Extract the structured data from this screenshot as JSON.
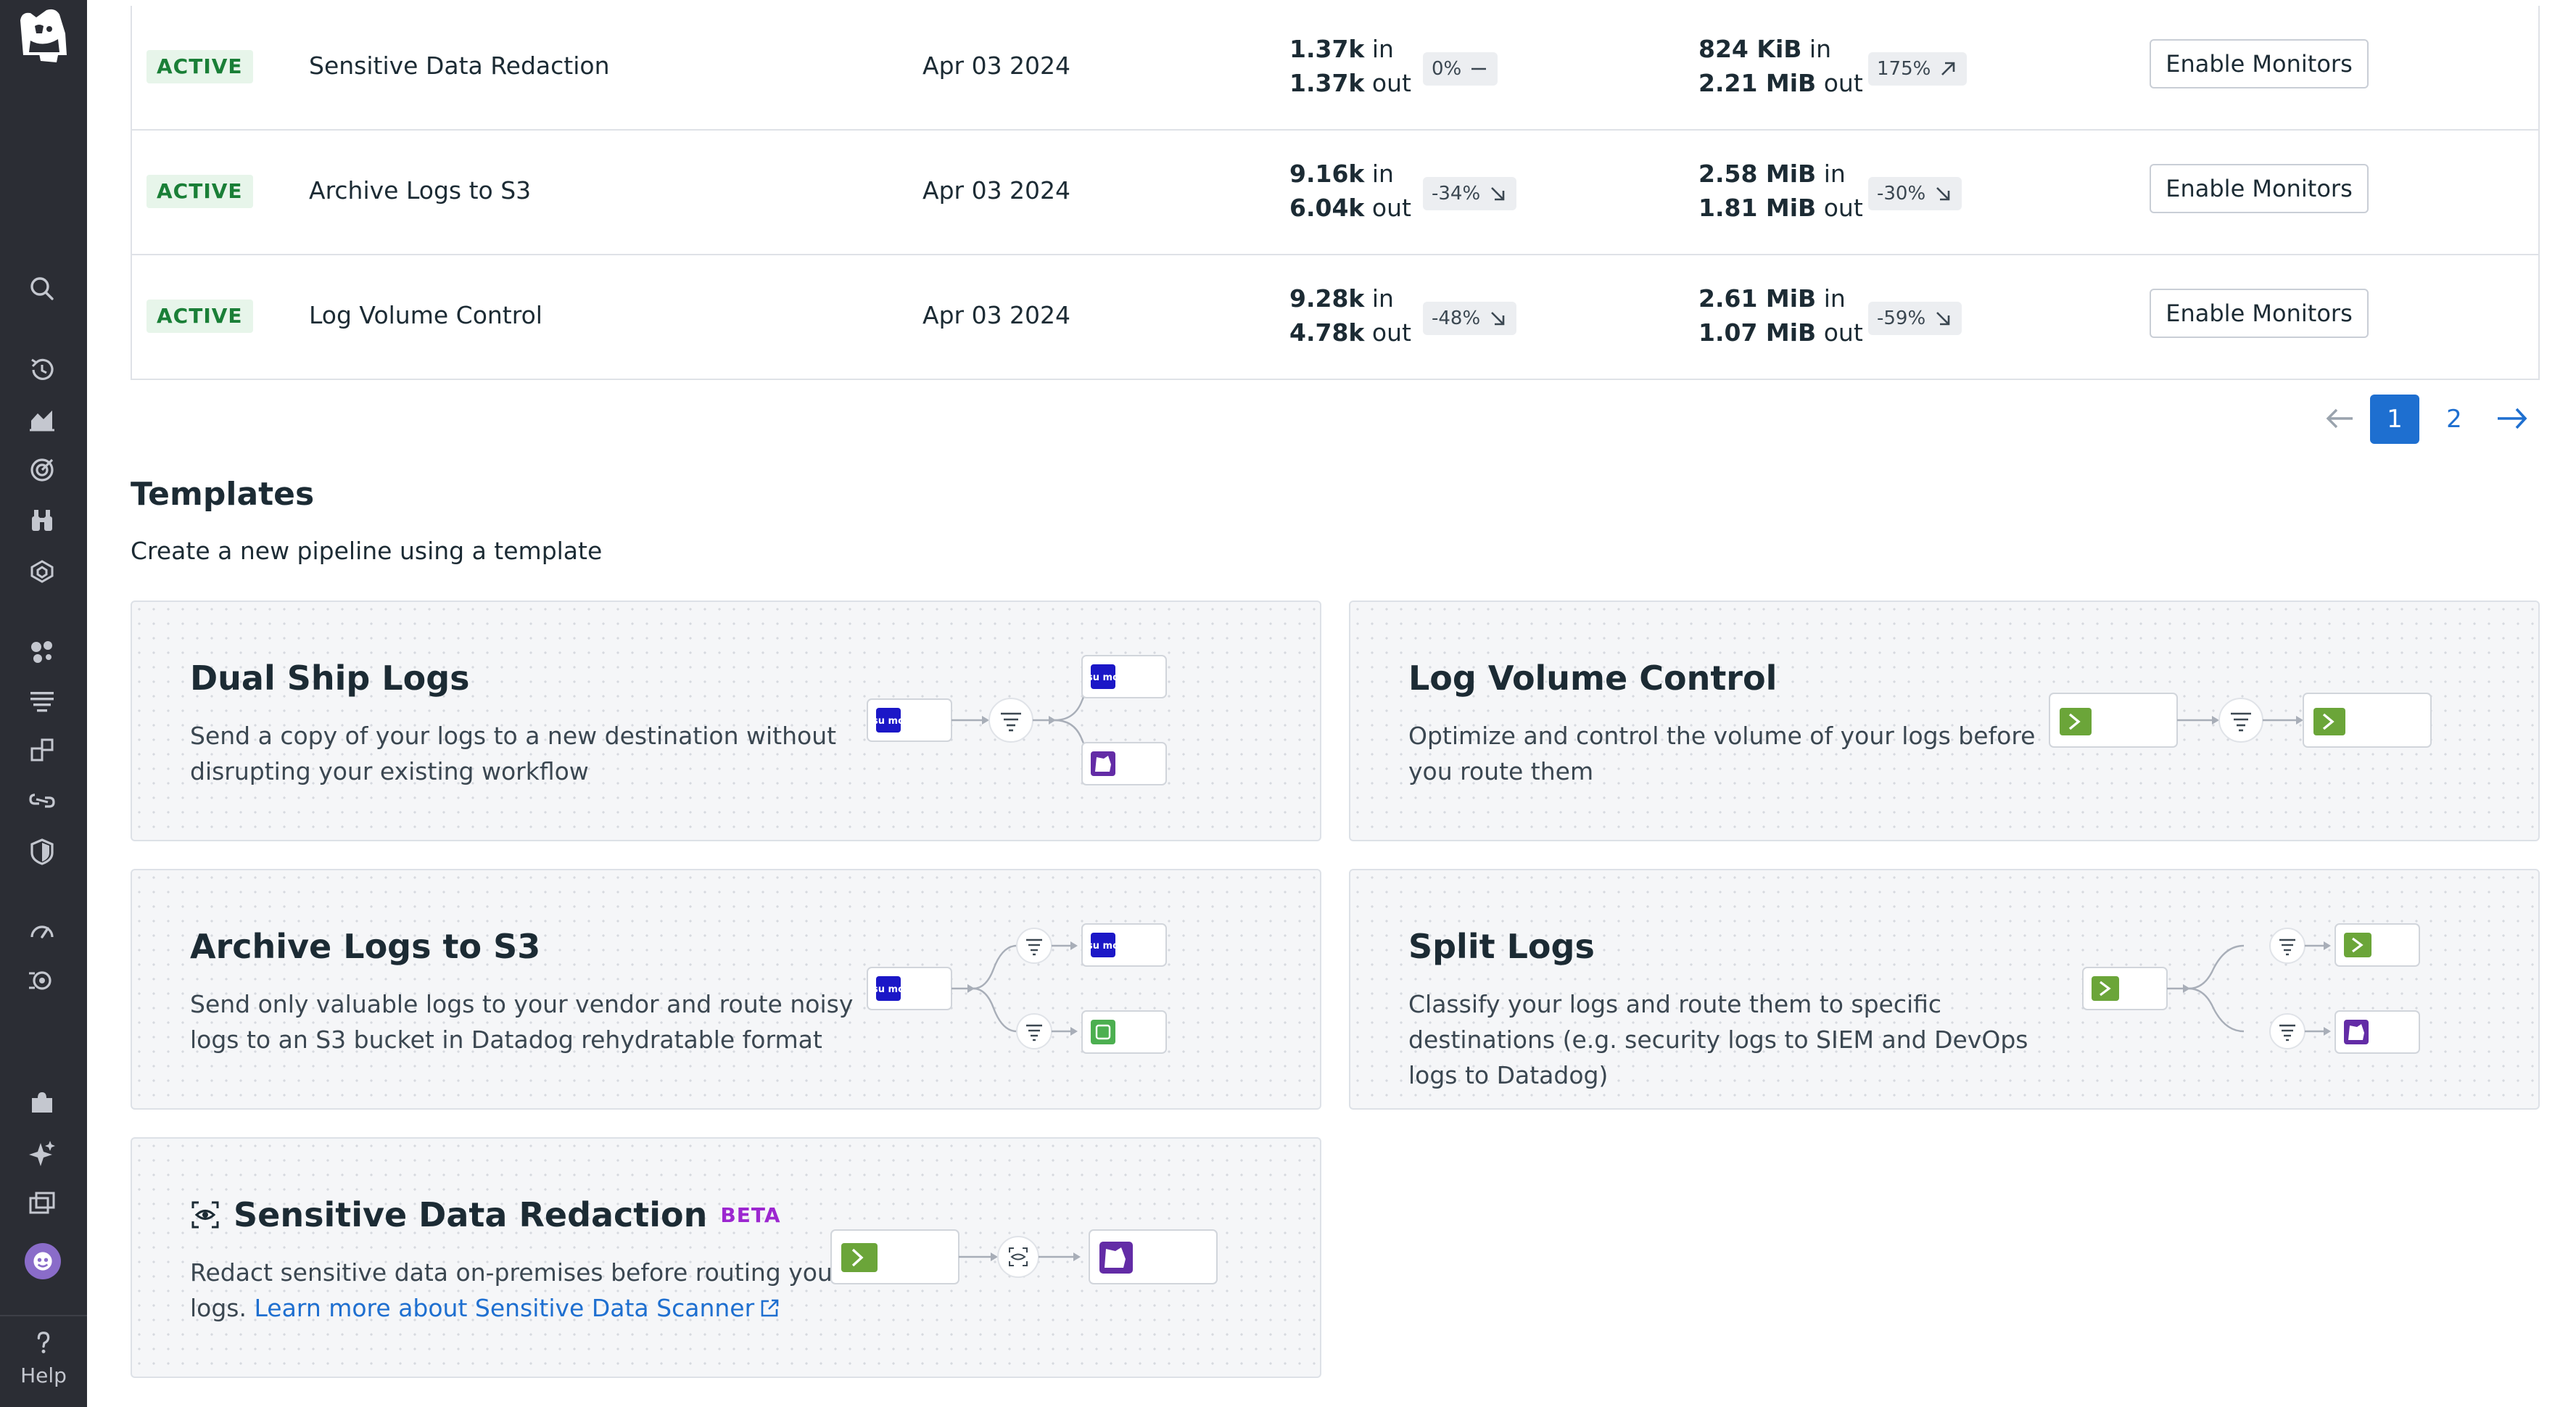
{
  "sidebar": {
    "items": [
      {
        "name": "search",
        "icon": "search-icon"
      },
      {
        "name": "history",
        "icon": "history-icon"
      },
      {
        "name": "dashboards",
        "icon": "area-chart-icon"
      },
      {
        "name": "monitors",
        "icon": "target-icon"
      },
      {
        "name": "watchdog",
        "icon": "binoculars-icon"
      },
      {
        "name": "service-mgmt",
        "icon": "layers-icon"
      },
      {
        "name": "infrastructure",
        "icon": "hexagons-icon"
      },
      {
        "name": "logs",
        "icon": "logs-icon"
      },
      {
        "name": "apm",
        "icon": "apm-icon"
      },
      {
        "name": "integrations-link",
        "icon": "chain-link-icon"
      },
      {
        "name": "security",
        "icon": "shield-icon"
      },
      {
        "name": "digital-experience",
        "icon": "speedometer-icon"
      },
      {
        "name": "software-delivery",
        "icon": "delivery-icon"
      },
      {
        "name": "integrations",
        "icon": "puzzle-icon"
      },
      {
        "name": "bits-ai",
        "icon": "sparkle-icon"
      },
      {
        "name": "notebooks",
        "icon": "windows-icon"
      }
    ],
    "help_label": "Help"
  },
  "table": {
    "rows": [
      {
        "status": "ACTIVE",
        "name": "Sensitive Data Redaction",
        "date": "Apr 03 2024",
        "events_in": "1.37k",
        "events_out": "1.37k",
        "events_change": "0%",
        "events_trend": "flat",
        "bytes_in": "824 KiB",
        "bytes_out": "2.21 MiB",
        "bytes_change": "175%",
        "bytes_trend": "up",
        "action": "Enable Monitors"
      },
      {
        "status": "ACTIVE",
        "name": "Archive Logs to S3",
        "date": "Apr 03 2024",
        "events_in": "9.16k",
        "events_out": "6.04k",
        "events_change": "-34%",
        "events_trend": "down",
        "bytes_in": "2.58 MiB",
        "bytes_out": "1.81 MiB",
        "bytes_change": "-30%",
        "bytes_trend": "down",
        "action": "Enable Monitors"
      },
      {
        "status": "ACTIVE",
        "name": "Log Volume Control",
        "date": "Apr 03 2024",
        "events_in": "9.28k",
        "events_out": "4.78k",
        "events_change": "-48%",
        "events_trend": "down",
        "bytes_in": "2.61 MiB",
        "bytes_out": "1.07 MiB",
        "bytes_change": "-59%",
        "bytes_trend": "down",
        "action": "Enable Monitors"
      }
    ],
    "in_label": "in",
    "out_label": "out"
  },
  "pagination": {
    "pages": [
      "1",
      "2"
    ],
    "current": "1"
  },
  "templates": {
    "title": "Templates",
    "subtitle": "Create a new pipeline using a template",
    "cards": [
      {
        "title": "Dual Ship Logs",
        "description": "Send a copy of your logs to a new destination without disrupting your existing workflow"
      },
      {
        "title": "Log Volume Control",
        "description": "Optimize and control the volume of your logs before you route them"
      },
      {
        "title": "Archive Logs to S3",
        "description": "Send only valuable logs to your vendor and route noisy logs to an S3 bucket in Datadog rehydratable format"
      },
      {
        "title": "Split Logs",
        "description": "Classify your logs and route them to specific destinations (e.g. security logs to SIEM and DevOps logs to Datadog)"
      },
      {
        "title": "Sensitive Data Redaction",
        "badge": "BETA",
        "description": "Redact sensitive data on-premises before routing your logs.",
        "link": "Learn more about Sensitive Data Scanner"
      }
    ],
    "source_logo_text": "su mo"
  },
  "colors": {
    "sidebar_bg": "#2b2d34",
    "active_badge_bg": "#e7f5ea",
    "active_badge_text": "#1a7f37",
    "link": "#1e6fd0",
    "sumo_blue": "#1b17c7",
    "terminal_green": "#6ba539",
    "datadog_purple": "#632ca6",
    "s3_green": "#4caf50",
    "beta_purple": "#9c27d0"
  }
}
